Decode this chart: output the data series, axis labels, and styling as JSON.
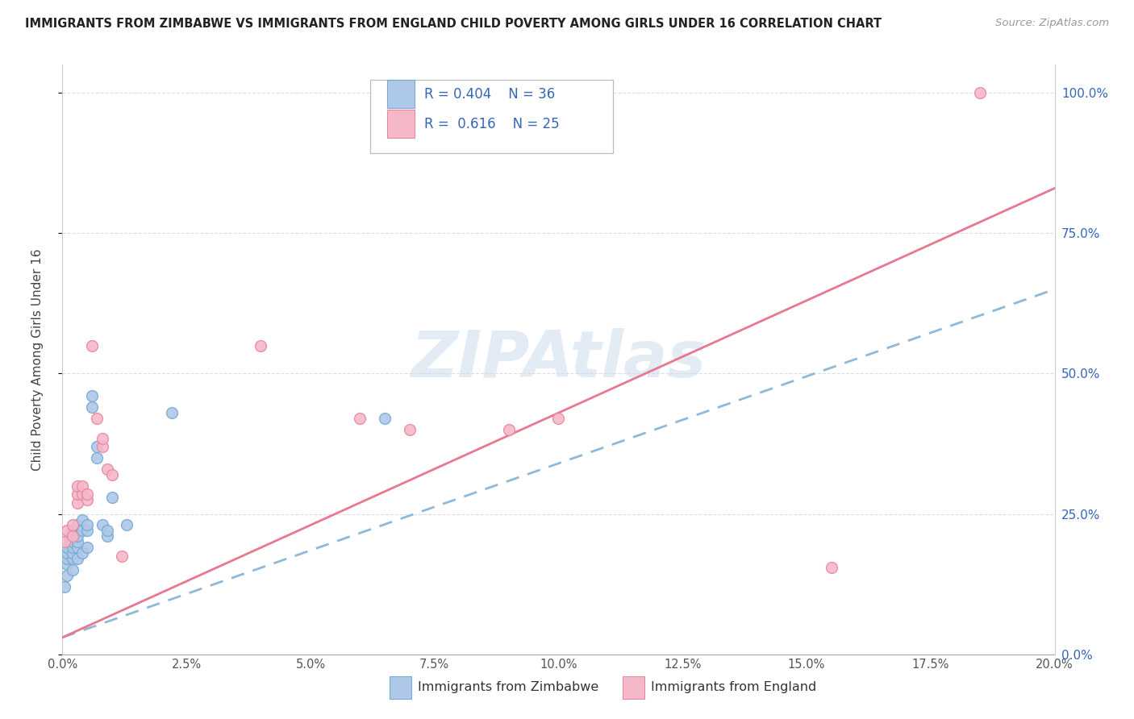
{
  "title": "IMMIGRANTS FROM ZIMBABWE VS IMMIGRANTS FROM ENGLAND CHILD POVERTY AMONG GIRLS UNDER 16 CORRELATION CHART",
  "source": "Source: ZipAtlas.com",
  "ylabel": "Child Poverty Among Girls Under 16",
  "xlim": [
    0.0,
    0.2
  ],
  "ylim": [
    0.0,
    1.05
  ],
  "xtick_vals": [
    0.0,
    0.025,
    0.05,
    0.075,
    0.1,
    0.125,
    0.15,
    0.175,
    0.2
  ],
  "xtick_labels": [
    "0.0%",
    "2.5%",
    "5.0%",
    "7.5%",
    "10.0%",
    "12.5%",
    "15.0%",
    "17.5%",
    "20.0%"
  ],
  "ytick_vals": [
    0.0,
    0.25,
    0.5,
    0.75,
    1.0
  ],
  "ytick_labels": [
    "0.0%",
    "25.0%",
    "50.0%",
    "75.0%",
    "100.0%"
  ],
  "R_zim": 0.404,
  "N_zim": 36,
  "R_eng": 0.616,
  "N_eng": 25,
  "zim_face": "#adc8e8",
  "zim_edge": "#7aaad0",
  "eng_face": "#f5b8c8",
  "eng_edge": "#e888a0",
  "zim_line": "#90b8d8",
  "eng_line": "#e87890",
  "watermark": "ZIPAtlas",
  "watermark_color": "#cddcee",
  "title_color": "#222222",
  "source_color": "#999999",
  "label_color": "#3366bb",
  "grid_color": "#dedede",
  "zim_line_intercept": 0.03,
  "zim_line_slope": 3.1,
  "eng_line_intercept": 0.03,
  "eng_line_slope": 4.0,
  "zimbabwe_x": [
    0.0005,
    0.001,
    0.001,
    0.001,
    0.001,
    0.001,
    0.0015,
    0.0015,
    0.002,
    0.002,
    0.002,
    0.002,
    0.002,
    0.002,
    0.003,
    0.003,
    0.003,
    0.003,
    0.003,
    0.004,
    0.004,
    0.004,
    0.005,
    0.005,
    0.005,
    0.006,
    0.006,
    0.007,
    0.007,
    0.008,
    0.009,
    0.009,
    0.01,
    0.013,
    0.022,
    0.065
  ],
  "zimbabwe_y": [
    0.12,
    0.14,
    0.16,
    0.17,
    0.18,
    0.19,
    0.2,
    0.21,
    0.15,
    0.17,
    0.18,
    0.19,
    0.2,
    0.22,
    0.17,
    0.19,
    0.2,
    0.21,
    0.23,
    0.18,
    0.22,
    0.24,
    0.19,
    0.22,
    0.23,
    0.44,
    0.46,
    0.35,
    0.37,
    0.23,
    0.21,
    0.22,
    0.28,
    0.23,
    0.43,
    0.42
  ],
  "england_x": [
    0.0005,
    0.001,
    0.002,
    0.002,
    0.003,
    0.003,
    0.003,
    0.004,
    0.004,
    0.005,
    0.005,
    0.006,
    0.007,
    0.008,
    0.008,
    0.009,
    0.01,
    0.012,
    0.04,
    0.06,
    0.07,
    0.09,
    0.1,
    0.155,
    0.185
  ],
  "england_y": [
    0.2,
    0.22,
    0.21,
    0.23,
    0.27,
    0.285,
    0.3,
    0.285,
    0.3,
    0.275,
    0.285,
    0.55,
    0.42,
    0.37,
    0.385,
    0.33,
    0.32,
    0.175,
    0.55,
    0.42,
    0.4,
    0.4,
    0.42,
    0.155,
    1.0
  ]
}
